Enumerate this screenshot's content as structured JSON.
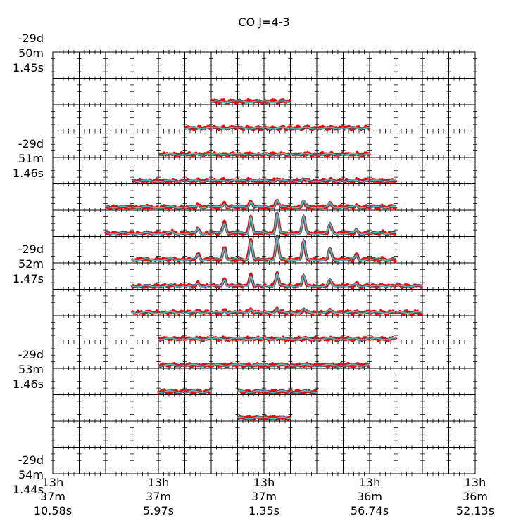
{
  "chart_data": {
    "type": "line",
    "title": "CO J=4-3",
    "grid": {
      "columns": 16,
      "rows": 16
    },
    "x_ticks": [
      {
        "col": 0,
        "lines": [
          "13h",
          "37m",
          "10.58s"
        ]
      },
      {
        "col": 4,
        "lines": [
          "13h",
          "37m",
          "5.97s"
        ]
      },
      {
        "col": 8,
        "lines": [
          "13h",
          "37m",
          "1.35s"
        ]
      },
      {
        "col": 12,
        "lines": [
          "13h",
          "36m",
          "56.74s"
        ]
      },
      {
        "col": 16,
        "lines": [
          "13h",
          "36m",
          "52.13s"
        ]
      }
    ],
    "y_ticks": [
      {
        "row": 0,
        "lines": [
          "-29d",
          "50m",
          "1.45s"
        ]
      },
      {
        "row": 4,
        "lines": [
          "-29d",
          "51m",
          "1.46s"
        ]
      },
      {
        "row": 8,
        "lines": [
          "-29d",
          "52m",
          "1.47s"
        ]
      },
      {
        "row": 12,
        "lines": [
          "-29d",
          "53m",
          "1.46s"
        ]
      },
      {
        "row": 16,
        "lines": [
          "-29d",
          "54m",
          "1.44s"
        ]
      }
    ],
    "series_colors": {
      "observed": "#ff0000",
      "model": "#5fb8c4",
      "model_edge": "#555555"
    },
    "panel_rows": [
      {
        "row": 1,
        "col_start": 6,
        "col_end": 9,
        "peak": 0.0
      },
      {
        "row": 2,
        "col_start": 5,
        "col_end": 12,
        "peak": 0.0
      },
      {
        "row": 3,
        "col_start": 4,
        "col_end": 12,
        "peak": 0.05
      },
      {
        "row": 4,
        "col_start": 3,
        "col_end": 13,
        "peak": 0.12
      },
      {
        "row": 5,
        "col_start": 2,
        "col_end": 13,
        "peak": 0.35
      },
      {
        "row": 6,
        "col_start": 2,
        "col_end": 13,
        "peak": 0.85
      },
      {
        "row": 7,
        "col_start": 3,
        "col_end": 13,
        "peak": 1.0
      },
      {
        "row": 8,
        "col_start": 3,
        "col_end": 14,
        "peak": 0.75
      },
      {
        "row": 9,
        "col_start": 3,
        "col_end": 14,
        "peak": 0.4
      },
      {
        "row": 10,
        "col_start": 4,
        "col_end": 13,
        "peak": 0.1
      },
      {
        "row": 11,
        "col_start": 4,
        "col_end": 12,
        "peak": 0.05
      },
      {
        "row": 12,
        "col_start": 4,
        "col_end": 6,
        "peak": 0.0
      },
      {
        "row": 12,
        "col_start": 7,
        "col_end": 10,
        "peak": 0.0
      },
      {
        "row": 13,
        "col_start": 7,
        "col_end": 9,
        "peak": 0.0
      }
    ]
  }
}
